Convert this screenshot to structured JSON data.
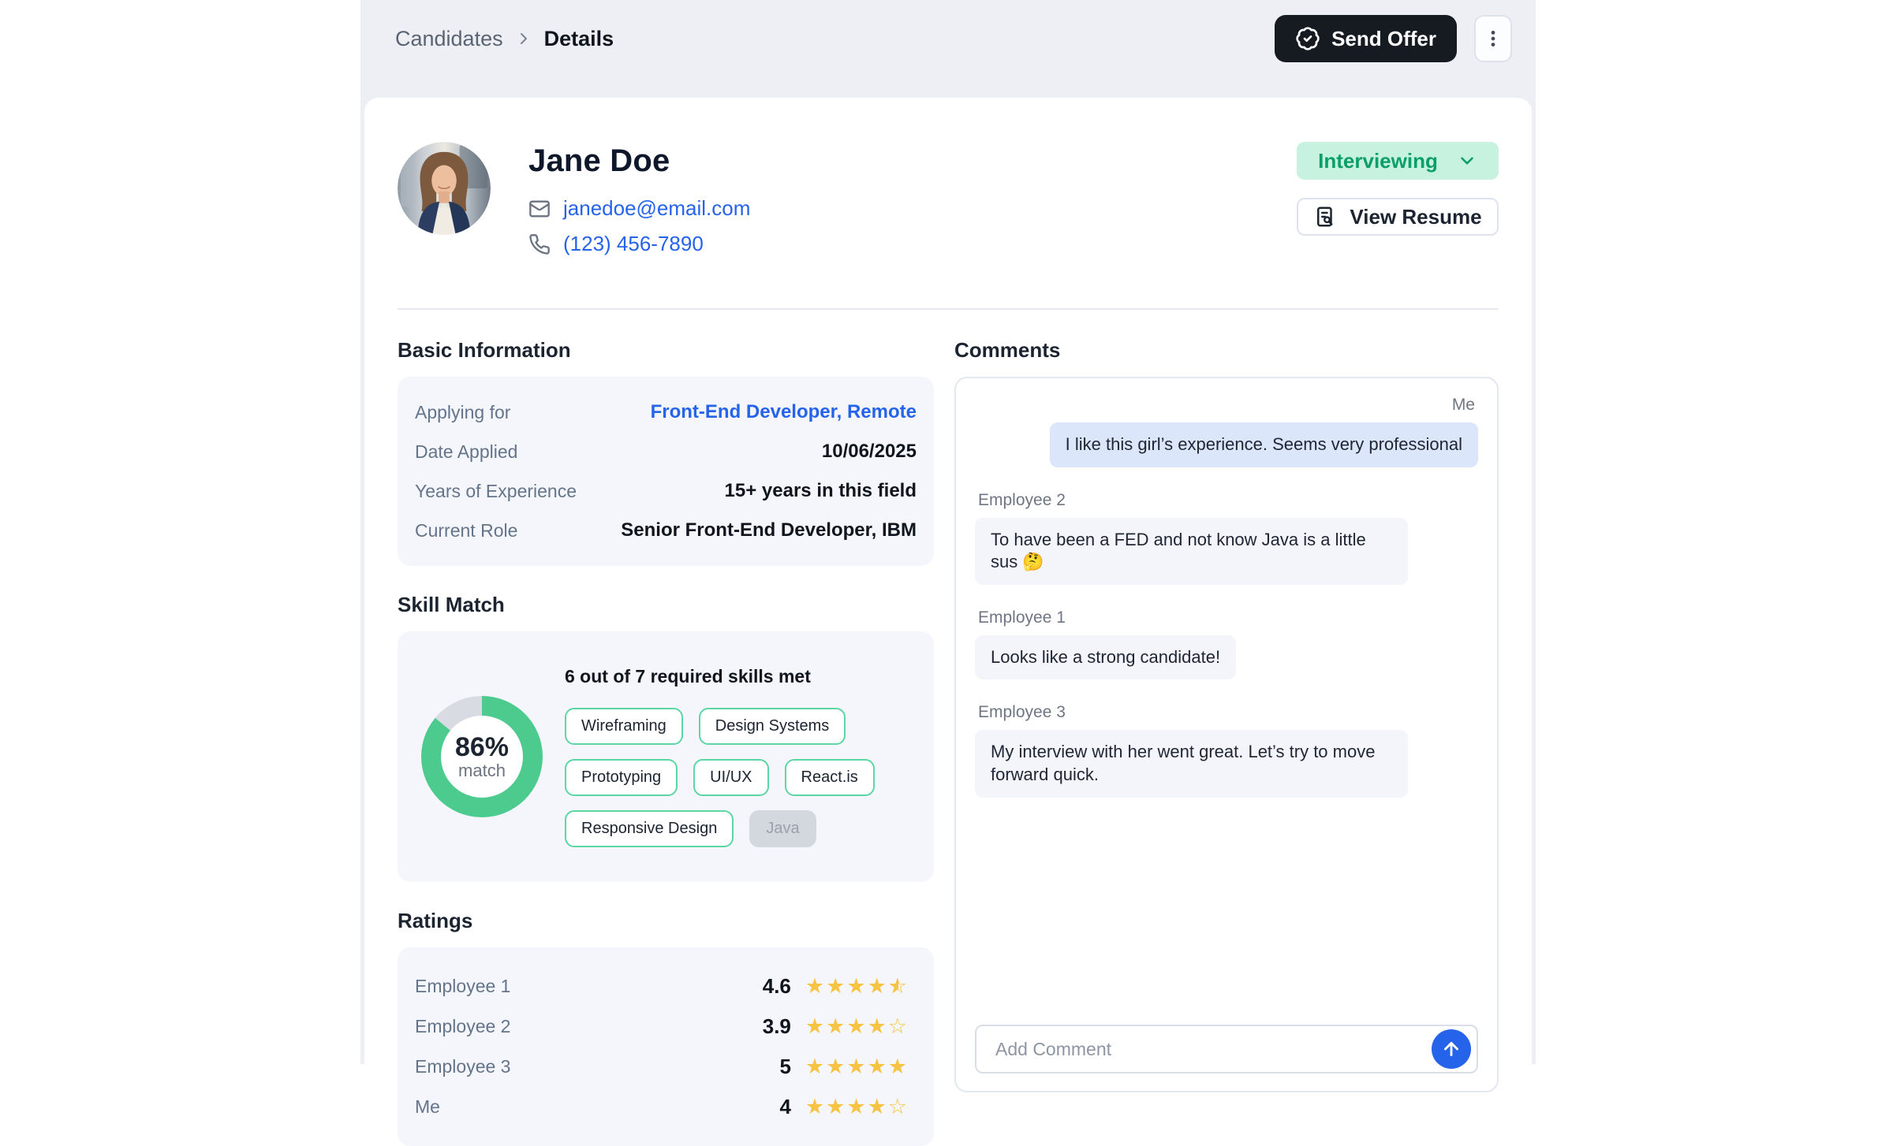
{
  "colors": {
    "accent_blue": "#2563eb",
    "send_offer_bg": "#161b22",
    "status_green": "#0a9e6b",
    "status_green_bg": "#c7f2df",
    "donut_green": "#4dcb8f",
    "donut_track": "#d8dbe1",
    "chip_border": "#5cd6a2",
    "star_yellow": "#f6c342",
    "me_bubble": "#dbe6fb"
  },
  "breadcrumb": {
    "section": "Candidates",
    "current": "Details"
  },
  "header": {
    "send_offer_label": "Send Offer"
  },
  "profile": {
    "name": "Jane Doe",
    "email": "janedoe@email.com",
    "phone": "(123) 456-7890",
    "status_label": "Interviewing",
    "view_resume_label": "View Resume"
  },
  "basic_information": {
    "title": "Basic Information",
    "rows": [
      {
        "label": "Applying for",
        "value": "Front-End Developer, Remote",
        "link": true
      },
      {
        "label": "Date Applied",
        "value": "10/06/2025",
        "link": false
      },
      {
        "label": "Years of Experience",
        "value": "15+ years in this field",
        "link": false
      },
      {
        "label": "Current Role",
        "value": "Senior Front-End Developer, IBM",
        "link": false
      }
    ]
  },
  "skill_match": {
    "title": "Skill Match",
    "percent_value": 86,
    "match_percent": "86%",
    "match_caption": "match",
    "summary": "6 out of 7 required skills met",
    "skills": [
      {
        "name": "Wireframing",
        "met": true
      },
      {
        "name": "Design Systems",
        "met": true
      },
      {
        "name": "Prototyping",
        "met": true
      },
      {
        "name": "UI/UX",
        "met": true
      },
      {
        "name": "React.is",
        "met": true
      },
      {
        "name": "Responsive Design",
        "met": true
      },
      {
        "name": "Java",
        "met": false
      }
    ]
  },
  "ratings": {
    "title": "Ratings",
    "entries": [
      {
        "name": "Employee 1",
        "score": "4.6",
        "stars": 4.5
      },
      {
        "name": "Employee 2",
        "score": "3.9",
        "stars": 4
      },
      {
        "name": "Employee 3",
        "score": "5",
        "stars": 5
      },
      {
        "name": "Me",
        "score": "4",
        "stars": 4
      }
    ]
  },
  "comments": {
    "title": "Comments",
    "messages": [
      {
        "author": "Me",
        "self": true,
        "text": "I like this girl’s experience. Seems very professional"
      },
      {
        "author": "Employee 2",
        "self": false,
        "text": "To have been a FED and not know Java is a little sus 🤔"
      },
      {
        "author": "Employee 1",
        "self": false,
        "text": "Looks like a strong candidate!"
      },
      {
        "author": "Employee 3",
        "self": false,
        "text": "My interview with her went great. Let’s try to move forward quick."
      }
    ],
    "input_placeholder": "Add Comment"
  }
}
